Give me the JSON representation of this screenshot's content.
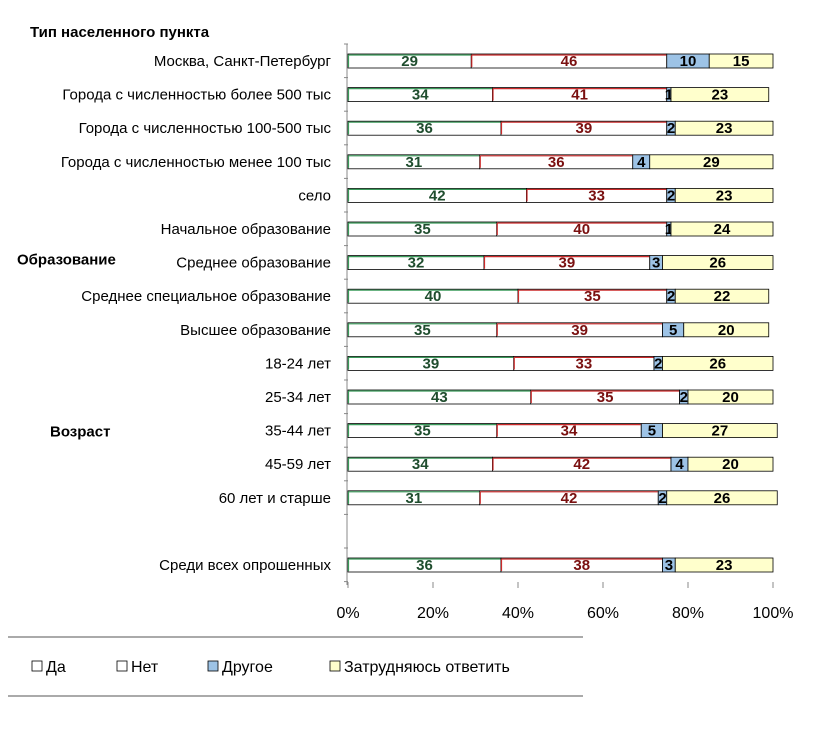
{
  "chart_data": {
    "type": "bar",
    "stacked": true,
    "orientation": "horizontal",
    "percent": true,
    "groups": [
      {
        "label": "Тип населенного пункта",
        "first": 0,
        "last": 4
      },
      {
        "label": "Образование",
        "first": 5,
        "last": 8
      },
      {
        "label": "Возраст",
        "first": 9,
        "last": 12
      }
    ],
    "categories": [
      "Москва, Санкт-Петербург",
      "Города с численностью более 500 тыс",
      "Города с численностью 100-500 тыс",
      "Города с численностью менее 100 тыс",
      "село",
      "Начальное образование",
      "Среднее образование",
      "Среднее специальное образование",
      "Высшее образование",
      "18-24 лет",
      "25-34 лет",
      "35-44 лет",
      "45-59 лет",
      "60 лет и старше",
      "",
      "Среди всех опрошенных"
    ],
    "series": [
      {
        "name": "Да",
        "color": "#ffffff",
        "label_color": "#1f4d2e",
        "edge_color": "#3a9a5a",
        "values": [
          29,
          34,
          36,
          31,
          42,
          35,
          32,
          40,
          35,
          39,
          43,
          35,
          34,
          31,
          null,
          36
        ]
      },
      {
        "name": "Нет",
        "color": "#ffffff",
        "label_color": "#7a1010",
        "edge_color": "#cc2a2a",
        "values": [
          46,
          41,
          39,
          36,
          33,
          40,
          39,
          35,
          39,
          33,
          35,
          34,
          42,
          42,
          null,
          38
        ]
      },
      {
        "name": "Другое",
        "color": "#9dc3e6",
        "label_color": "#000000",
        "values": [
          10,
          1,
          2,
          4,
          2,
          1,
          3,
          2,
          5,
          2,
          2,
          5,
          4,
          2,
          null,
          3
        ]
      },
      {
        "name": "Затрудняюсь ответить",
        "color": "#ffffcc",
        "label_color": "#000000",
        "values": [
          15,
          23,
          23,
          29,
          23,
          24,
          26,
          22,
          20,
          26,
          20,
          27,
          20,
          26,
          null,
          23
        ]
      }
    ],
    "xlim": [
      0,
      100
    ],
    "xticks": [
      "0%",
      "20%",
      "40%",
      "60%",
      "80%",
      "100%"
    ],
    "legend_position": "bottom"
  }
}
